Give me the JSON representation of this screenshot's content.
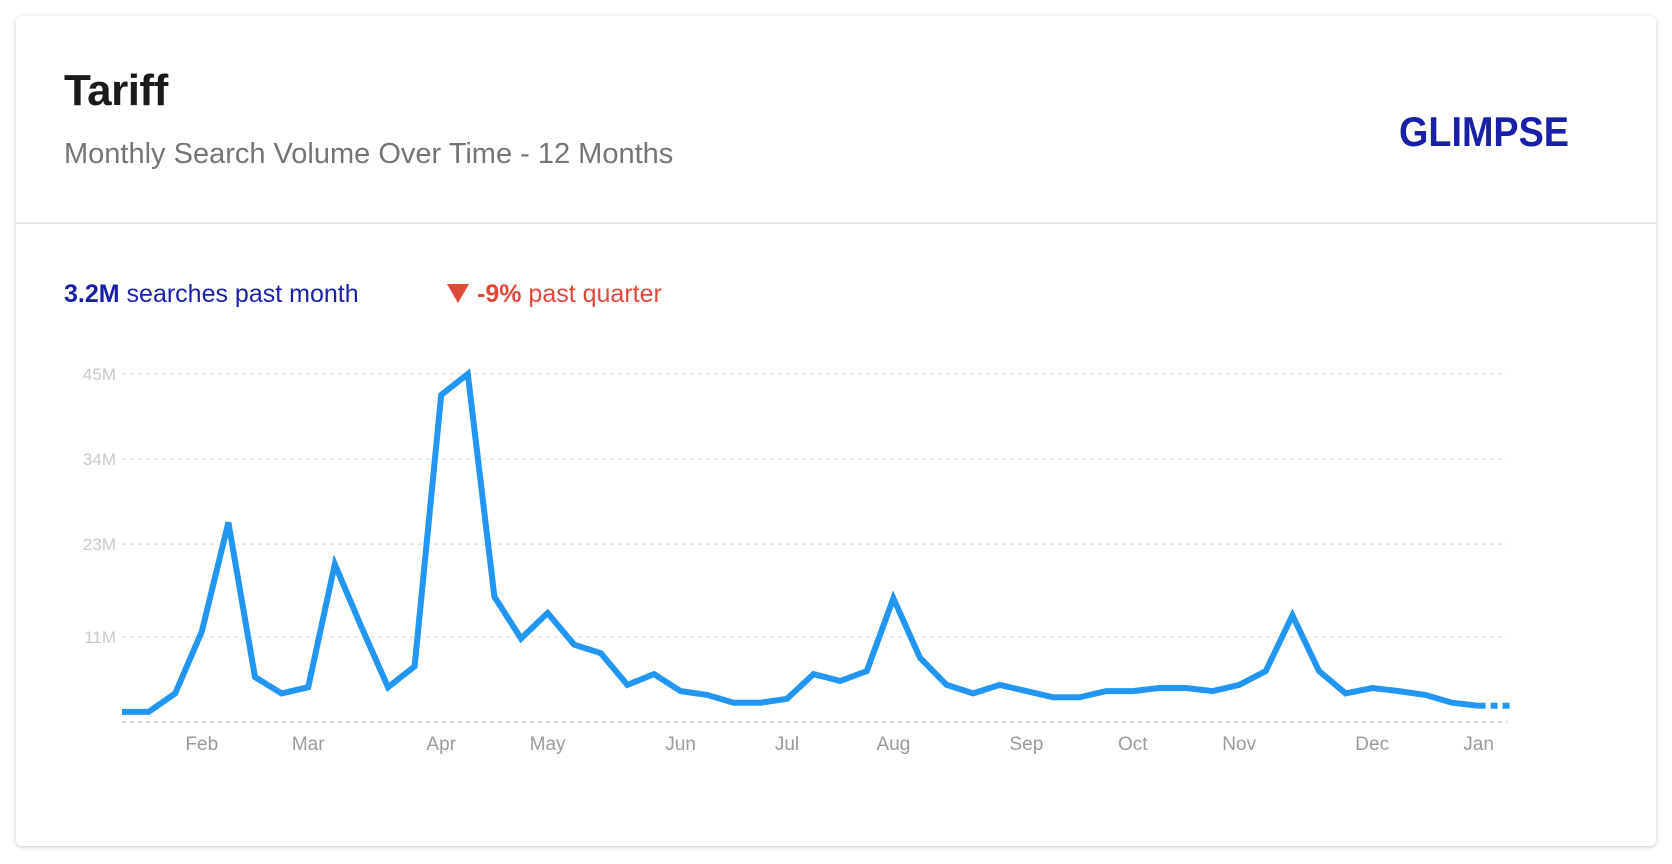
{
  "header": {
    "title": "Tariff",
    "subtitle": "Monthly Search Volume Over Time - 12 Months",
    "logo_text": "GLIMPSE"
  },
  "stats": {
    "volume_value": "3.2M",
    "volume_label": "searches past month",
    "change_icon": "triangle-down-icon",
    "change_value": "-9%",
    "change_label": "past quarter"
  },
  "colors": {
    "line": "#2196f3",
    "brand": "#1a1fa8",
    "negative": "#e0493a",
    "axis_text": "#c9c9c9",
    "month_text": "#9a9a9a"
  },
  "chart_data": {
    "type": "line",
    "title": "",
    "xlabel": "",
    "ylabel": "",
    "ylim": [
      0,
      45
    ],
    "y_unit": "M",
    "y_ticks": [
      11,
      23,
      34,
      45
    ],
    "y_tick_labels": [
      "11M",
      "23M",
      "34M",
      "45M"
    ],
    "x_tick_labels": [
      "Feb",
      "Mar",
      "Apr",
      "May",
      "Jun",
      "Jul",
      "Aug",
      "Sep",
      "Oct",
      "Nov",
      "Dec",
      "Jan"
    ],
    "x_tick_week_index": [
      3,
      7,
      12,
      16,
      21,
      25,
      29,
      34,
      38,
      42,
      47,
      51
    ],
    "grid": true,
    "series": [
      {
        "values": [
          1.3,
          1.3,
          3.7,
          11.7,
          25.8,
          5.8,
          3.7,
          4.5,
          20.4,
          12.3,
          4.5,
          7.2,
          42.3,
          45.0,
          16.2,
          10.8,
          14.1,
          10.0,
          8.9,
          4.8,
          6.2,
          4.0,
          3.5,
          2.5,
          2.5,
          3.0,
          6.2,
          5.3,
          6.6,
          16.0,
          8.3,
          4.8,
          3.7,
          4.8,
          4.0,
          3.2,
          3.2,
          4.0,
          4.0,
          4.4,
          4.4,
          4.0,
          4.8,
          6.6,
          13.8,
          6.6,
          3.7,
          4.4,
          4.0,
          3.5,
          2.5,
          2.1,
          2.1
        ]
      }
    ]
  }
}
